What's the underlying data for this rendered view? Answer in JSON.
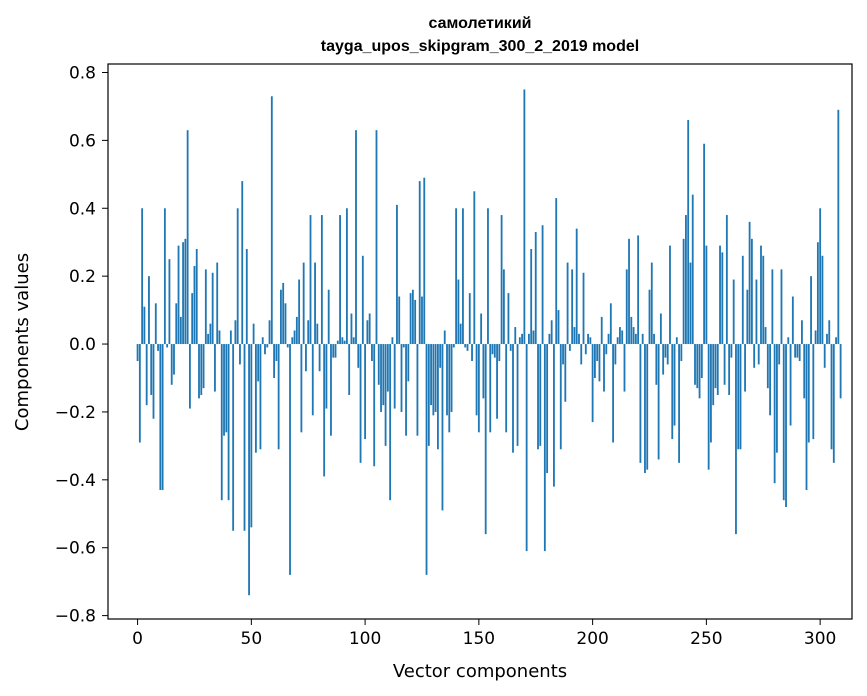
{
  "chart_data": {
    "type": "bar",
    "title_line1": "самолетикий",
    "title_line2": "tayga_upos_skipgram_300_2_2019 model",
    "xlabel": "Vector components",
    "ylabel": "Components values",
    "xlim": [
      -13,
      314
    ],
    "ylim": [
      -0.81,
      0.825
    ],
    "x_ticks": [
      0,
      50,
      100,
      150,
      200,
      250,
      300
    ],
    "x_tick_labels": [
      "0",
      "50",
      "100",
      "150",
      "200",
      "250",
      "300"
    ],
    "y_ticks": [
      -0.8,
      -0.6,
      -0.4,
      -0.2,
      0.0,
      0.2,
      0.4,
      0.6,
      0.8
    ],
    "y_tick_labels": [
      "−0.8",
      "−0.6",
      "−0.4",
      "−0.2",
      "0.0",
      "0.2",
      "0.4",
      "0.6",
      "0.8"
    ],
    "bar_color": "#1f77b4",
    "values": [
      -0.05,
      -0.29,
      0.4,
      0.11,
      -0.18,
      0.2,
      -0.15,
      -0.22,
      0.12,
      -0.02,
      -0.43,
      -0.43,
      0.4,
      -0.01,
      0.25,
      -0.12,
      -0.09,
      0.12,
      0.29,
      0.08,
      0.3,
      0.31,
      0.63,
      -0.19,
      0.15,
      0.23,
      0.28,
      -0.16,
      -0.15,
      -0.13,
      0.22,
      0.03,
      0.06,
      0.21,
      -0.14,
      0.24,
      0.04,
      -0.46,
      -0.27,
      -0.26,
      -0.46,
      0.04,
      -0.55,
      0.07,
      0.4,
      -0.06,
      0.48,
      -0.55,
      0.28,
      -0.74,
      -0.54,
      0.06,
      -0.32,
      -0.11,
      -0.31,
      0.02,
      -0.03,
      -0.01,
      0.07,
      0.73,
      -0.1,
      -0.05,
      -0.31,
      0.16,
      0.18,
      0.12,
      -0.01,
      -0.68,
      0.02,
      0.04,
      0.08,
      0.19,
      -0.26,
      0.24,
      -0.08,
      0.07,
      0.38,
      -0.21,
      0.24,
      0.06,
      -0.08,
      0.38,
      -0.39,
      -0.19,
      0.16,
      -0.27,
      -0.04,
      -0.04,
      0.01,
      0.38,
      0.02,
      0.01,
      0.4,
      -0.15,
      0.09,
      0.02,
      0.63,
      -0.07,
      -0.35,
      0.26,
      -0.28,
      0.07,
      0.09,
      -0.05,
      -0.36,
      0.63,
      -0.12,
      -0.2,
      -0.18,
      -0.3,
      -0.14,
      -0.46,
      0.02,
      -0.19,
      0.41,
      0.14,
      -0.2,
      -0.01,
      -0.27,
      -0.11,
      0.15,
      0.16,
      0.13,
      -0.27,
      0.48,
      0.14,
      0.49,
      -0.68,
      -0.3,
      -0.18,
      -0.21,
      -0.2,
      -0.31,
      -0.07,
      -0.49,
      0.04,
      -0.21,
      -0.26,
      -0.2,
      -0.01,
      0.4,
      0.19,
      0.06,
      0.4,
      -0.01,
      -0.02,
      0.15,
      -0.05,
      0.45,
      -0.21,
      -0.26,
      0.09,
      -0.16,
      -0.56,
      0.4,
      -0.26,
      -0.03,
      -0.04,
      -0.22,
      -0.05,
      0.38,
      0.22,
      -0.26,
      0.15,
      -0.02,
      -0.32,
      0.05,
      -0.3,
      0.02,
      0.03,
      0.75,
      -0.61,
      0.03,
      0.28,
      0.04,
      0.33,
      -0.31,
      -0.3,
      0.35,
      -0.61,
      -0.38,
      0.03,
      0.07,
      -0.42,
      0.43,
      0.1,
      -0.31,
      -0.06,
      -0.17,
      0.24,
      -0.02,
      0.22,
      0.05,
      0.34,
      0.03,
      -0.06,
      0.21,
      -0.03,
      0.03,
      0.02,
      -0.23,
      -0.1,
      -0.05,
      -0.11,
      0.08,
      -0.14,
      -0.03,
      0.03,
      0.12,
      -0.29,
      -0.06,
      0.02,
      0.05,
      0.04,
      -0.14,
      0.22,
      0.31,
      0.08,
      0.05,
      0.03,
      0.32,
      -0.35,
      0.03,
      -0.38,
      -0.37,
      0.16,
      0.24,
      0.03,
      -0.12,
      -0.34,
      0.09,
      -0.09,
      -0.04,
      -0.06,
      0.29,
      -0.28,
      -0.24,
      0.02,
      -0.35,
      -0.05,
      0.31,
      0.38,
      0.66,
      0.24,
      0.44,
      -0.12,
      -0.13,
      -0.16,
      -0.1,
      0.59,
      0.29,
      -0.37,
      -0.29,
      -0.18,
      -0.13,
      -0.15,
      0.29,
      0.27,
      -0.12,
      0.38,
      -0.15,
      -0.04,
      0.19,
      -0.56,
      -0.31,
      -0.31,
      0.26,
      -0.14,
      0.16,
      0.36,
      0.31,
      -0.07,
      0.19,
      -0.06,
      0.29,
      0.26,
      0.05,
      -0.13,
      -0.21,
      0.22,
      -0.41,
      -0.32,
      -0.06,
      0.22,
      -0.46,
      -0.48,
      0.02,
      -0.24,
      0.14,
      -0.04,
      -0.04,
      -0.05,
      0.07,
      -0.16,
      -0.43,
      -0.29,
      0.2,
      -0.28,
      0.04,
      0.3,
      0.4,
      0.26,
      -0.07,
      0.03,
      0.07,
      -0.31,
      -0.35,
      0.02,
      0.69,
      -0.16
    ]
  }
}
